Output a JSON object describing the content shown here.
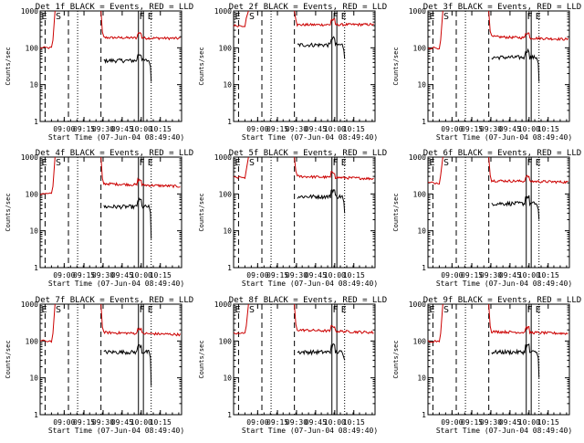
{
  "chart_data": [
    {
      "type": "line",
      "title": "Det 1f BLACK = Events, RED = LLD",
      "xlabel": "Start Time (07-Jun-04 08:49:40)",
      "ylabel": "Counts/sec",
      "yscale": "log",
      "ylim": [
        1,
        1000
      ],
      "x_ticks": [
        "09:00",
        "09:15",
        "09:30",
        "09:45",
        "10:00",
        "10:15"
      ],
      "y_ticks": [
        "1",
        "10",
        "100",
        "1000"
      ],
      "markers": [
        "E",
        "S",
        "F",
        "E"
      ],
      "series": [
        {
          "name": "Events",
          "color": "#000000",
          "base": 45,
          "drop": 12
        },
        {
          "name": "LLD",
          "color": "#cc0000",
          "rise": null,
          "base": 190,
          "tail": 180
        }
      ]
    },
    {
      "type": "line",
      "title": "Det 2f BLACK = Events, RED = LLD",
      "xlabel": "Start Time (07-Jun-04 08:49:40)",
      "ylabel": "Counts/sec",
      "yscale": "log",
      "ylim": [
        1,
        1000
      ],
      "x_ticks": [
        "09:00",
        "09:15",
        "09:30",
        "09:45",
        "10:00",
        "10:15"
      ],
      "y_ticks": [
        "1",
        "10",
        "100",
        "1000"
      ],
      "markers": [
        "E",
        "S",
        "F",
        "E"
      ],
      "series": [
        {
          "name": "Events",
          "color": "#000000",
          "base": 120,
          "drop": 50
        },
        {
          "name": "LLD",
          "color": "#cc0000",
          "rise": 400,
          "base": 420,
          "tail": 430
        }
      ]
    },
    {
      "type": "line",
      "title": "Det 3f BLACK = Events, RED = LLD",
      "xlabel": "Start Time (07-Jun-04 08:49:40)",
      "ylabel": "Counts/sec",
      "yscale": "log",
      "ylim": [
        1,
        1000
      ],
      "x_ticks": [
        "09:00",
        "09:15",
        "09:30",
        "09:45",
        "10:00",
        "10:15"
      ],
      "y_ticks": [
        "1",
        "10",
        "100",
        "1000"
      ],
      "markers": [
        "E",
        "S",
        "F",
        "E"
      ],
      "series": [
        {
          "name": "Events",
          "color": "#000000",
          "base": 55,
          "drop": 12
        },
        {
          "name": "LLD",
          "color": "#cc0000",
          "rise": null,
          "base": 200,
          "tail": 170
        }
      ]
    },
    {
      "type": "line",
      "title": "Det 4f BLACK = Events, RED = LLD",
      "xlabel": "Start Time (07-Jun-04 08:49:40)",
      "ylabel": "Counts/sec",
      "yscale": "log",
      "ylim": [
        1,
        1000
      ],
      "x_ticks": [
        "09:00",
        "09:15",
        "09:30",
        "09:45",
        "10:00",
        "10:15"
      ],
      "y_ticks": [
        "1",
        "10",
        "100",
        "1000"
      ],
      "markers": [
        "E",
        "S",
        "F",
        "E"
      ],
      "series": [
        {
          "name": "Events",
          "color": "#000000",
          "base": 45,
          "drop": 6
        },
        {
          "name": "LLD",
          "color": "#cc0000",
          "rise": null,
          "base": 190,
          "tail": 160
        }
      ]
    },
    {
      "type": "line",
      "title": "Det 5f BLACK = Events, RED = LLD",
      "xlabel": "Start Time (07-Jun-04 08:49:40)",
      "ylabel": "Counts/sec",
      "yscale": "log",
      "ylim": [
        1,
        1000
      ],
      "x_ticks": [
        "09:00",
        "09:15",
        "09:30",
        "09:45",
        "10:00",
        "10:15"
      ],
      "y_ticks": [
        "1",
        "10",
        "100",
        "1000"
      ],
      "markers": [
        "E",
        "S",
        "F",
        "E"
      ],
      "series": [
        {
          "name": "Events",
          "color": "#000000",
          "base": 85,
          "drop": 30
        },
        {
          "name": "LLD",
          "color": "#cc0000",
          "rise": 280,
          "base": 300,
          "tail": 260
        }
      ]
    },
    {
      "type": "line",
      "title": "Det 6f BLACK = Events, RED = LLD",
      "xlabel": "Start Time (07-Jun-04 08:49:40)",
      "ylabel": "Counts/sec",
      "yscale": "log",
      "ylim": [
        1,
        1000
      ],
      "x_ticks": [
        "09:00",
        "09:15",
        "09:30",
        "09:45",
        "10:00",
        "10:15"
      ],
      "y_ticks": [
        "1",
        "10",
        "100",
        "1000"
      ],
      "markers": [
        "E",
        "S",
        "F",
        "E"
      ],
      "series": [
        {
          "name": "Events",
          "color": "#000000",
          "base": 55,
          "drop": 20
        },
        {
          "name": "LLD",
          "color": "#cc0000",
          "rise": 200,
          "base": 230,
          "tail": 210
        }
      ]
    },
    {
      "type": "line",
      "title": "Det 7f BLACK = Events, RED = LLD",
      "xlabel": "Start Time (07-Jun-04 08:49:40)",
      "ylabel": "Counts/sec",
      "yscale": "log",
      "ylim": [
        1,
        1000
      ],
      "x_ticks": [
        "09:00",
        "09:15",
        "09:30",
        "09:45",
        "10:00",
        "10:15"
      ],
      "y_ticks": [
        "1",
        "10",
        "100",
        "1000"
      ],
      "markers": [
        "E",
        "S",
        "F",
        "E"
      ],
      "series": [
        {
          "name": "Events",
          "color": "#000000",
          "base": 50,
          "drop": 6
        },
        {
          "name": "LLD",
          "color": "#cc0000",
          "rise": null,
          "base": 170,
          "tail": 150
        }
      ]
    },
    {
      "type": "line",
      "title": "Det 8f BLACK = Events, RED = LLD",
      "xlabel": "Start Time (07-Jun-04 08:49:40)",
      "ylabel": "Counts/sec",
      "yscale": "log",
      "ylim": [
        1,
        1000
      ],
      "x_ticks": [
        "09:00",
        "09:15",
        "09:30",
        "09:45",
        "10:00",
        "10:15"
      ],
      "y_ticks": [
        "1",
        "10",
        "100",
        "1000"
      ],
      "markers": [
        "E",
        "S",
        "F",
        "E"
      ],
      "series": [
        {
          "name": "Events",
          "color": "#000000",
          "base": 50,
          "drop": 30
        },
        {
          "name": "LLD",
          "color": "#cc0000",
          "rise": 160,
          "base": 200,
          "tail": 170
        }
      ]
    },
    {
      "type": "line",
      "title": "Det 9f BLACK = Events, RED = LLD",
      "xlabel": "Start Time (07-Jun-04 08:49:40)",
      "ylabel": "Counts/sec",
      "yscale": "log",
      "ylim": [
        1,
        1000
      ],
      "x_ticks": [
        "09:00",
        "09:15",
        "09:30",
        "09:45",
        "10:00",
        "10:15"
      ],
      "y_ticks": [
        "1",
        "10",
        "100",
        "1000"
      ],
      "markers": [
        "E",
        "S",
        "F",
        "E"
      ],
      "series": [
        {
          "name": "Events",
          "color": "#000000",
          "base": 50,
          "drop": 10
        },
        {
          "name": "LLD",
          "color": "#cc0000",
          "rise": null,
          "base": 180,
          "tail": 160
        }
      ]
    }
  ]
}
